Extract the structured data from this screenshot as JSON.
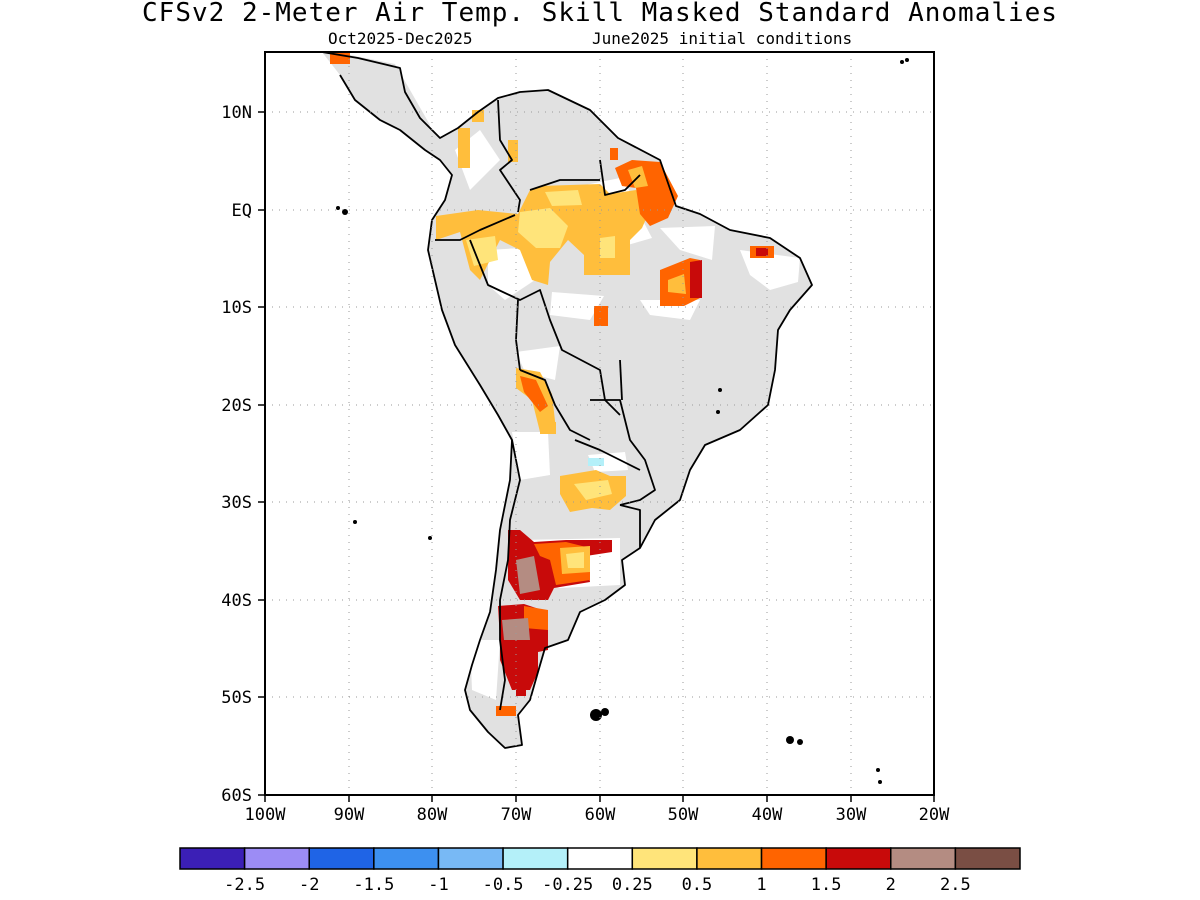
{
  "title": "CFSv2 2-Meter Air Temp. Skill Masked Standard Anomalies",
  "subtitle_left": "Oct2025-Dec2025",
  "subtitle_right": "June2025 initial conditions",
  "lat_labels": [
    "10N",
    "EQ",
    "10S",
    "20S",
    "30S",
    "40S",
    "50S",
    "60S"
  ],
  "lon_labels": [
    "100W",
    "90W",
    "80W",
    "70W",
    "60W",
    "50W",
    "40W",
    "30W",
    "20W"
  ],
  "colorbar": {
    "colors": [
      "#3b1fb6",
      "#9c8cf5",
      "#1f64e6",
      "#3d90f0",
      "#78b9f5",
      "#b4f0f9",
      "#ffffff",
      "#ffe47a",
      "#ffbe3c",
      "#ff6400",
      "#c80a0a",
      "#b48c82",
      "#7a4e44"
    ],
    "labels": [
      "-2.5",
      "-2",
      "-1.5",
      "-1",
      "-0.5",
      "-0.25",
      "0.25",
      "0.5",
      "1",
      "1.5",
      "2",
      "2.5"
    ]
  },
  "map_colors": {
    "no_skill": "#e1e1e1",
    "coast": "#000000",
    "grid": "#9a9a9a"
  }
}
